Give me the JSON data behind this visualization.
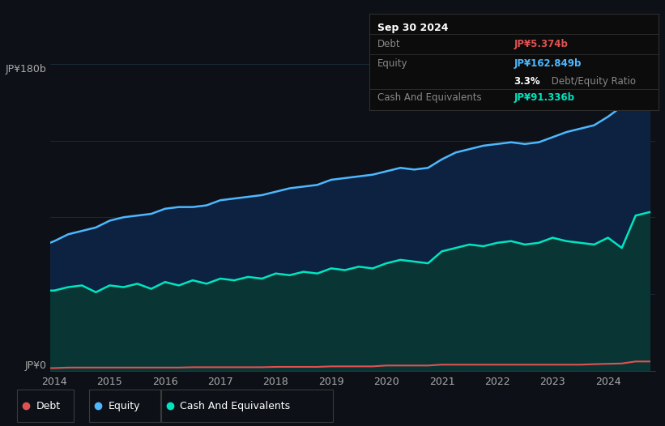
{
  "bg_color": "#0d1117",
  "ylabel_180": "JP¥180b",
  "ylabel_0": "JP¥0",
  "x_labels": [
    "2014",
    "2015",
    "2016",
    "2017",
    "2018",
    "2019",
    "2020",
    "2021",
    "2022",
    "2023",
    "2024"
  ],
  "tooltip_date": "Sep 30 2024",
  "tooltip_debt_label": "Debt",
  "tooltip_debt_value": "JP¥5.374b",
  "tooltip_equity_label": "Equity",
  "tooltip_equity_value": "JP¥162.849b",
  "tooltip_ratio": "3.3%",
  "tooltip_ratio_text": " Debt/Equity Ratio",
  "tooltip_cash_label": "Cash And Equivalents",
  "tooltip_cash_value": "JP¥91.336b",
  "debt_color": "#e05252",
  "equity_color": "#4db8ff",
  "cash_color": "#00e5c0",
  "equity_fill_color": "#0d2240",
  "cash_fill_color": "#0a3535",
  "legend_border_color": "#3a3a3a",
  "years": [
    2013.92,
    2014.0,
    2014.25,
    2014.5,
    2014.75,
    2015.0,
    2015.25,
    2015.5,
    2015.75,
    2016.0,
    2016.25,
    2016.5,
    2016.75,
    2017.0,
    2017.25,
    2017.5,
    2017.75,
    2018.0,
    2018.25,
    2018.5,
    2018.75,
    2019.0,
    2019.25,
    2019.5,
    2019.75,
    2020.0,
    2020.25,
    2020.5,
    2020.75,
    2021.0,
    2021.25,
    2021.5,
    2021.75,
    2022.0,
    2022.25,
    2022.5,
    2022.75,
    2023.0,
    2023.25,
    2023.5,
    2023.75,
    2024.0,
    2024.25,
    2024.5,
    2024.75
  ],
  "equity_values": [
    75,
    76,
    80,
    82,
    84,
    88,
    90,
    91,
    92,
    95,
    96,
    96,
    97,
    100,
    101,
    102,
    103,
    105,
    107,
    108,
    109,
    112,
    113,
    114,
    115,
    117,
    119,
    118,
    119,
    124,
    128,
    130,
    132,
    133,
    134,
    133,
    134,
    137,
    140,
    142,
    144,
    149,
    155,
    163,
    165
  ],
  "cash_values": [
    47,
    47,
    49,
    50,
    46,
    50,
    49,
    51,
    48,
    52,
    50,
    53,
    51,
    54,
    53,
    55,
    54,
    57,
    56,
    58,
    57,
    60,
    59,
    61,
    60,
    63,
    65,
    64,
    63,
    70,
    72,
    74,
    73,
    75,
    76,
    74,
    75,
    78,
    76,
    75,
    74,
    78,
    72,
    91,
    93
  ],
  "debt_values": [
    1.5,
    1.5,
    1.8,
    1.8,
    1.8,
    1.8,
    1.8,
    1.8,
    1.8,
    1.8,
    1.8,
    2.0,
    2.0,
    2.0,
    2.0,
    2.0,
    2.0,
    2.2,
    2.2,
    2.2,
    2.2,
    2.5,
    2.5,
    2.5,
    2.5,
    3.0,
    3.0,
    3.0,
    3.0,
    3.5,
    3.5,
    3.5,
    3.5,
    3.5,
    3.5,
    3.5,
    3.5,
    3.5,
    3.5,
    3.5,
    3.8,
    4.0,
    4.2,
    5.374,
    5.374
  ],
  "ylim": [
    0,
    180
  ],
  "xlim": [
    2013.92,
    2024.85
  ]
}
